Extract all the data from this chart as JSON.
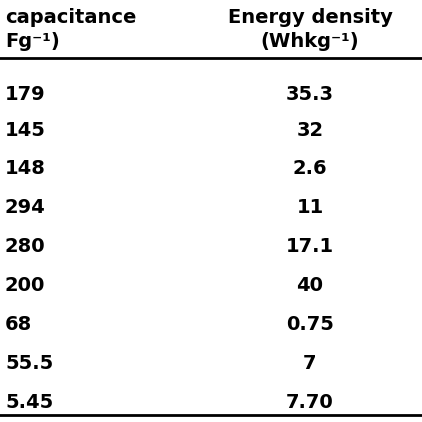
{
  "col1_header_line1": "capacitance",
  "col1_header_line2": "Fg⁻¹)",
  "col2_header_line1": "Energy density",
  "col2_header_line2": "(Whkg⁻¹)",
  "col1_values": [
    "179",
    "145",
    "148",
    "294",
    "280",
    "200",
    "68",
    "55.5",
    "5.45"
  ],
  "col2_values": [
    "35.3",
    "32",
    "2.6",
    "11",
    "17.1",
    "40",
    "0.75",
    "7",
    "7.70"
  ],
  "background_color": "#ffffff",
  "text_color": "#000000",
  "font_size": 14,
  "header_font_size": 14,
  "line_color": "#000000"
}
